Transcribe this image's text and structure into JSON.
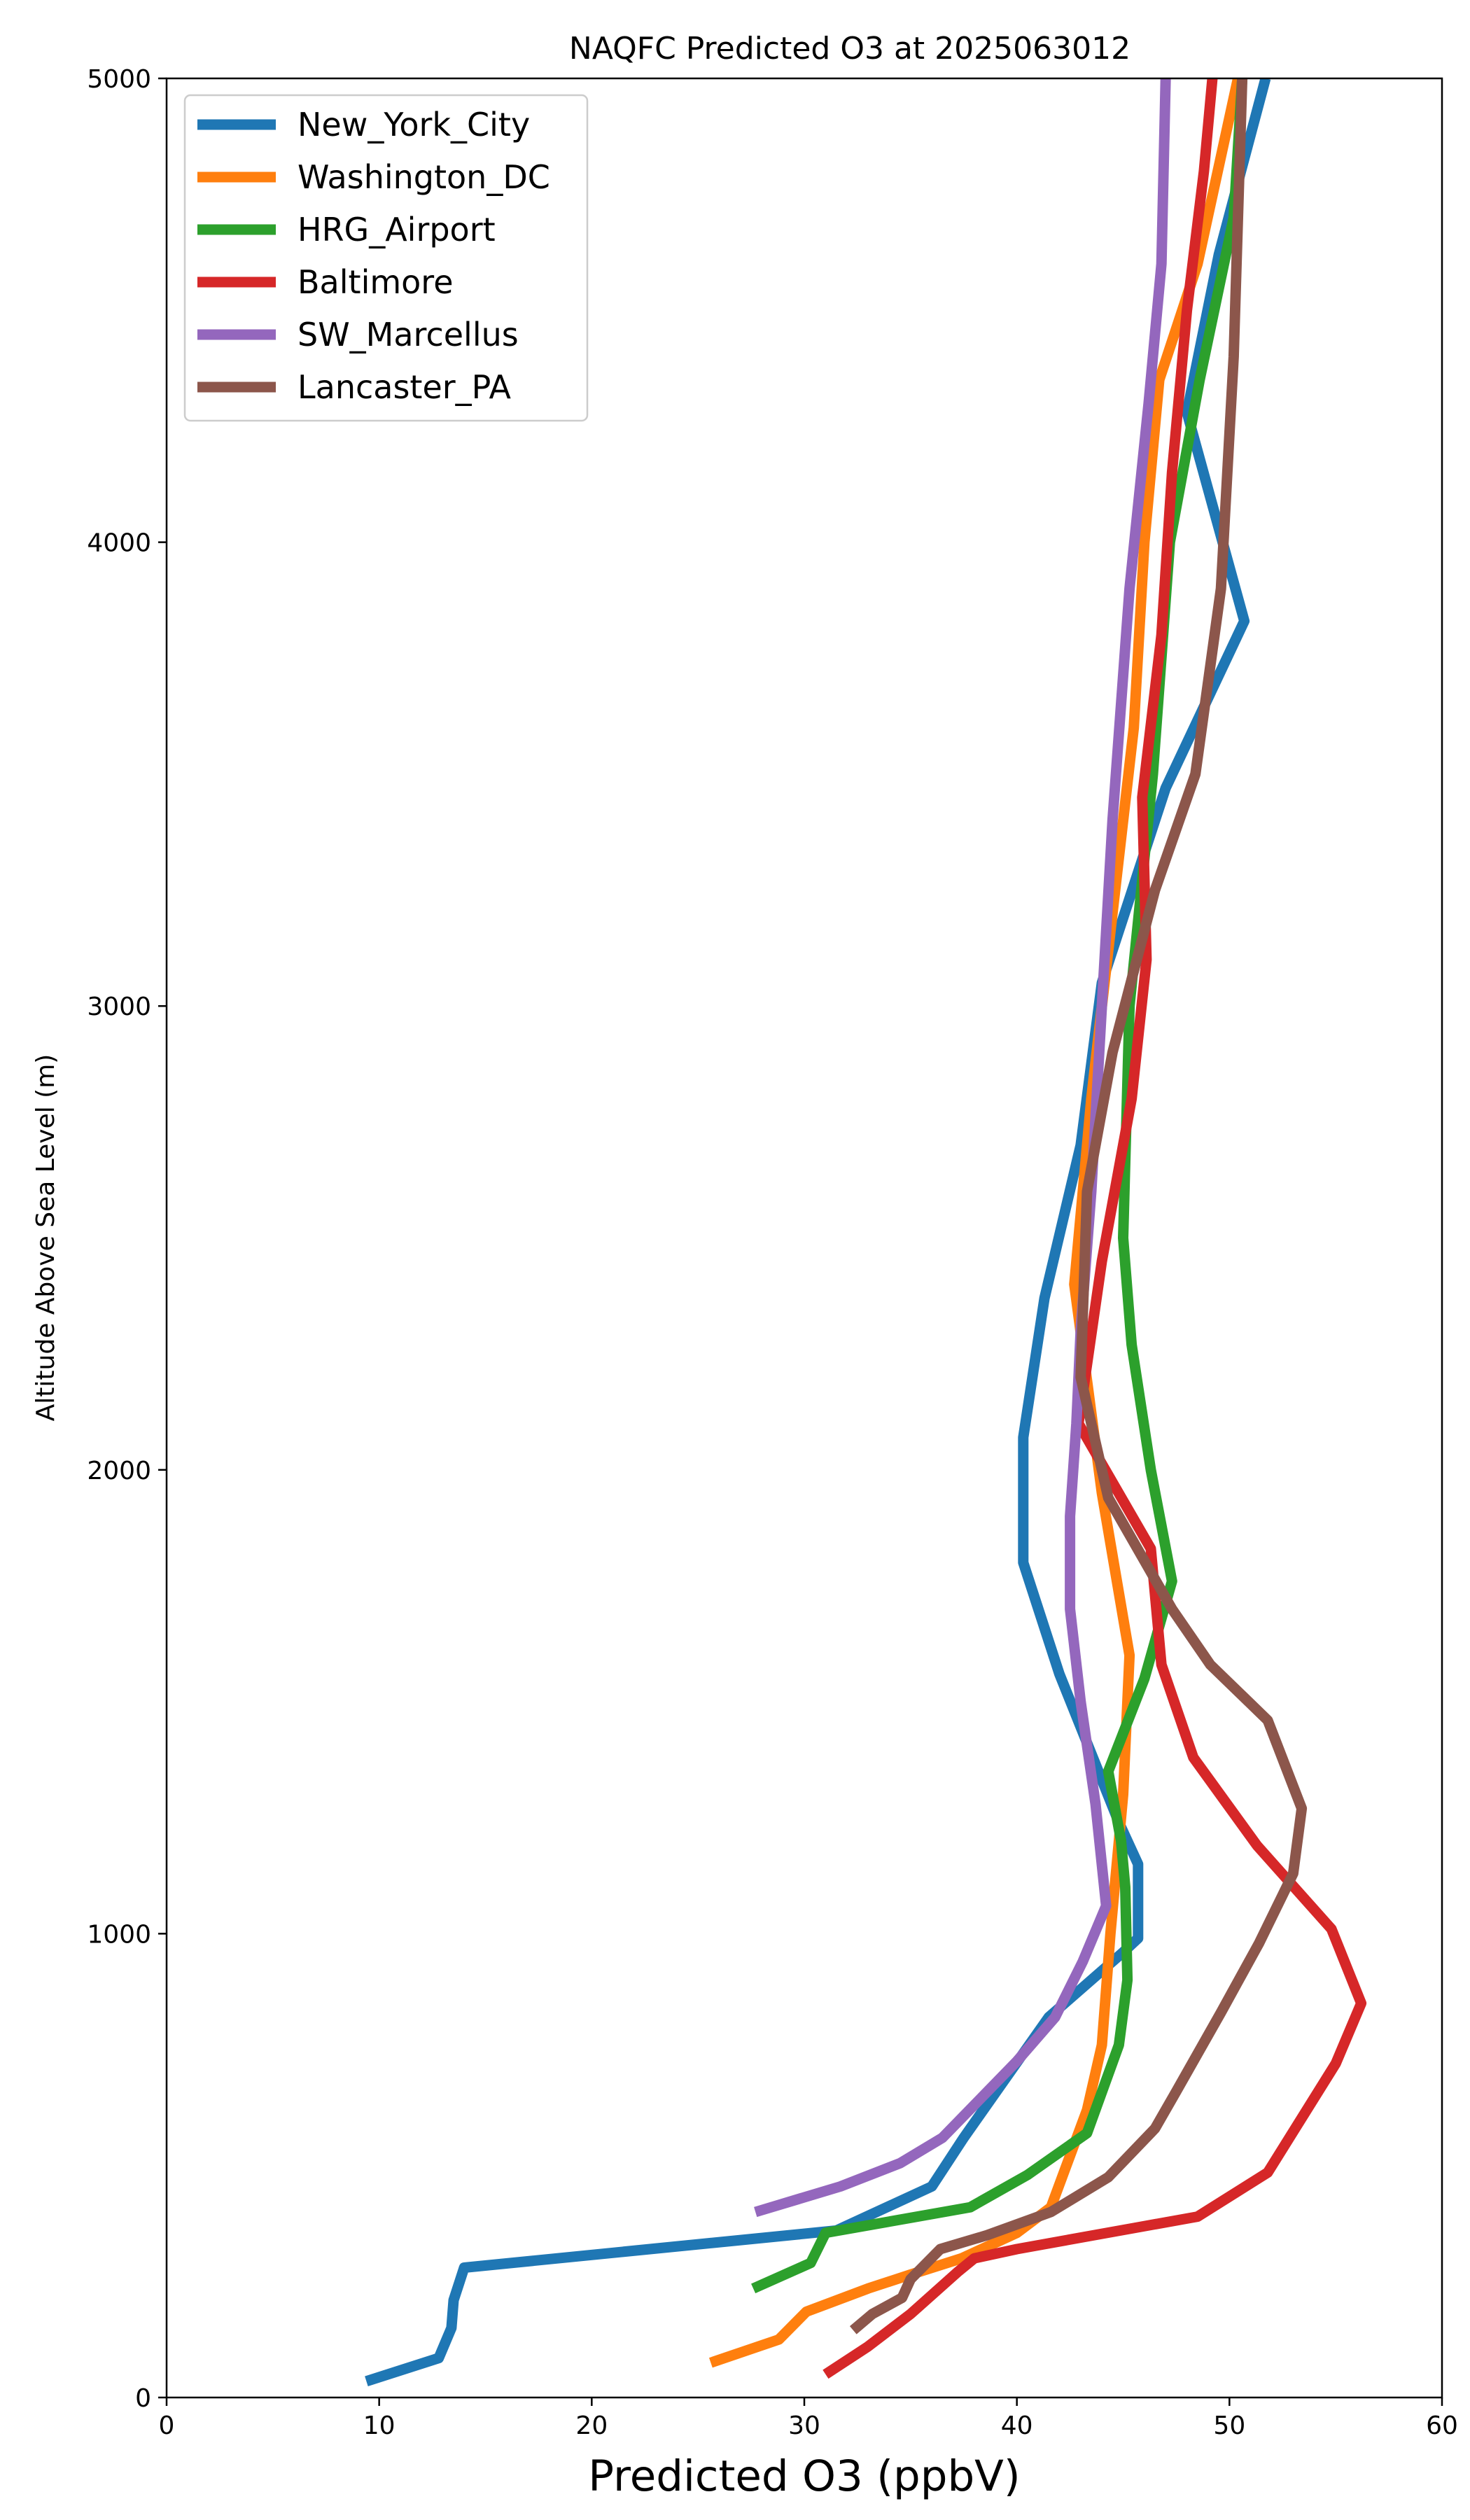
{
  "chart_data": {
    "type": "line",
    "title": "NAQFC Predicted O3 at 2025063012",
    "xlabel": "Predicted O3 (ppbV)",
    "ylabel": "Altitude Above Sea Level (m)",
    "xlim": [
      0,
      60
    ],
    "ylim": [
      0,
      5000
    ],
    "xticks": [
      0,
      10,
      20,
      30,
      40,
      50,
      60
    ],
    "yticks": [
      0,
      1000,
      2000,
      3000,
      4000,
      5000
    ],
    "grid": false,
    "legend_position": "top-left",
    "series": [
      {
        "name": "New_York_City",
        "color": "#1f77b4",
        "points": [
          [
            9.4,
            35
          ],
          [
            12.8,
            85
          ],
          [
            13.4,
            150
          ],
          [
            13.5,
            210
          ],
          [
            14.0,
            280
          ],
          [
            31.5,
            360
          ],
          [
            36.0,
            455
          ],
          [
            37.5,
            560
          ],
          [
            41.5,
            820
          ],
          [
            45.0,
            960
          ],
          [
            45.7,
            990
          ],
          [
            45.7,
            1150
          ],
          [
            44.8,
            1240
          ],
          [
            42.0,
            1560
          ],
          [
            40.3,
            1800
          ],
          [
            40.3,
            2070
          ],
          [
            41.3,
            2370
          ],
          [
            43.0,
            2700
          ],
          [
            44.0,
            3050
          ],
          [
            47.0,
            3470
          ],
          [
            50.7,
            3830
          ],
          [
            48.0,
            4280
          ],
          [
            49.5,
            4620
          ],
          [
            51.7,
            5000
          ]
        ]
      },
      {
        "name": "Washington_DC",
        "color": "#ff7f0e",
        "points": [
          [
            25.6,
            75
          ],
          [
            28.8,
            125
          ],
          [
            30.1,
            185
          ],
          [
            33.0,
            235
          ],
          [
            35.0,
            265
          ],
          [
            37.4,
            300
          ],
          [
            40.0,
            355
          ],
          [
            41.6,
            410
          ],
          [
            43.3,
            620
          ],
          [
            44.0,
            760
          ],
          [
            44.4,
            1000
          ],
          [
            45.0,
            1300
          ],
          [
            45.3,
            1600
          ],
          [
            44.0,
            1950
          ],
          [
            42.7,
            2400
          ],
          [
            43.5,
            2800
          ],
          [
            44.5,
            3200
          ],
          [
            45.5,
            3600
          ],
          [
            46.0,
            4000
          ],
          [
            46.7,
            4350
          ],
          [
            48.5,
            4600
          ],
          [
            50.4,
            5000
          ]
        ]
      },
      {
        "name": "HRG_Airport",
        "color": "#2ca02c",
        "points": [
          [
            27.6,
            235
          ],
          [
            30.3,
            290
          ],
          [
            31.0,
            355
          ],
          [
            37.8,
            410
          ],
          [
            40.5,
            480
          ],
          [
            43.3,
            570
          ],
          [
            44.8,
            760
          ],
          [
            45.2,
            900
          ],
          [
            45.1,
            1100
          ],
          [
            44.9,
            1200
          ],
          [
            44.3,
            1350
          ],
          [
            46.0,
            1550
          ],
          [
            47.3,
            1760
          ],
          [
            46.3,
            2000
          ],
          [
            45.4,
            2270
          ],
          [
            45.0,
            2500
          ],
          [
            45.3,
            3000
          ],
          [
            46.4,
            3500
          ],
          [
            47.2,
            4000
          ],
          [
            48.6,
            4350
          ],
          [
            50.2,
            4700
          ],
          [
            50.6,
            5000
          ]
        ]
      },
      {
        "name": "Baltimore",
        "color": "#d62728",
        "points": [
          [
            31.0,
            50
          ],
          [
            33.0,
            110
          ],
          [
            35.0,
            180
          ],
          [
            37.2,
            270
          ],
          [
            38.0,
            300
          ],
          [
            40.0,
            320
          ],
          [
            48.5,
            390
          ],
          [
            51.8,
            485
          ],
          [
            55.0,
            720
          ],
          [
            56.2,
            850
          ],
          [
            54.8,
            1010
          ],
          [
            51.3,
            1190
          ],
          [
            48.3,
            1380
          ],
          [
            46.8,
            1580
          ],
          [
            46.3,
            1830
          ],
          [
            42.9,
            2100
          ],
          [
            44.0,
            2450
          ],
          [
            45.4,
            2800
          ],
          [
            46.1,
            3100
          ],
          [
            45.9,
            3450
          ],
          [
            46.8,
            3800
          ],
          [
            47.3,
            4150
          ],
          [
            48.0,
            4500
          ],
          [
            48.8,
            4800
          ],
          [
            49.2,
            5000
          ]
        ]
      },
      {
        "name": "SW_Marcellus",
        "color": "#9467bd",
        "points": [
          [
            27.7,
            400
          ],
          [
            31.7,
            455
          ],
          [
            34.5,
            505
          ],
          [
            36.5,
            560
          ],
          [
            40.0,
            725
          ],
          [
            41.8,
            820
          ],
          [
            43.1,
            940
          ],
          [
            44.2,
            1060
          ],
          [
            43.7,
            1280
          ],
          [
            43.0,
            1500
          ],
          [
            42.5,
            1700
          ],
          [
            42.5,
            1900
          ],
          [
            42.8,
            2100
          ],
          [
            43.0,
            2300
          ],
          [
            43.5,
            2600
          ],
          [
            44.0,
            3000
          ],
          [
            44.5,
            3400
          ],
          [
            45.3,
            3900
          ],
          [
            46.2,
            4300
          ],
          [
            46.8,
            4600
          ],
          [
            47.0,
            5000
          ]
        ]
      },
      {
        "name": "Lancaster_PA",
        "color": "#8c564b",
        "points": [
          [
            32.3,
            145
          ],
          [
            33.2,
            180
          ],
          [
            34.6,
            215
          ],
          [
            35.0,
            255
          ],
          [
            36.4,
            320
          ],
          [
            38.6,
            350
          ],
          [
            41.6,
            400
          ],
          [
            44.3,
            475
          ],
          [
            46.5,
            580
          ],
          [
            47.5,
            660
          ],
          [
            49.6,
            830
          ],
          [
            51.4,
            980
          ],
          [
            53.0,
            1130
          ],
          [
            53.4,
            1270
          ],
          [
            51.8,
            1460
          ],
          [
            49.1,
            1580
          ],
          [
            47.3,
            1700
          ],
          [
            44.3,
            1940
          ],
          [
            43.0,
            2200
          ],
          [
            43.3,
            2600
          ],
          [
            44.5,
            2900
          ],
          [
            46.5,
            3250
          ],
          [
            48.4,
            3500
          ],
          [
            49.6,
            3900
          ],
          [
            50.2,
            4400
          ],
          [
            50.6,
            5000
          ]
        ]
      }
    ]
  }
}
